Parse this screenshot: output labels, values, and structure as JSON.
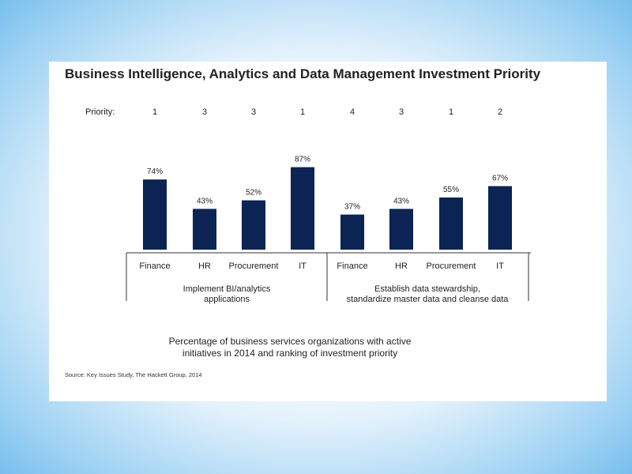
{
  "chart_data": {
    "type": "bar",
    "title": "Business Intelligence, Analytics and Data Management Investment Priority",
    "priority_label": "Priority:",
    "categories": [
      "Finance",
      "HR",
      "Procurement",
      "IT",
      "Finance",
      "HR",
      "Procurement",
      "IT"
    ],
    "values": [
      74,
      43,
      52,
      87,
      37,
      43,
      55,
      67
    ],
    "value_labels": [
      "74%",
      "43%",
      "52%",
      "87%",
      "37%",
      "43%",
      "55%",
      "67%"
    ],
    "priorities": [
      "1",
      "3",
      "3",
      "1",
      "4",
      "3",
      "1",
      "2"
    ],
    "groups": [
      {
        "label_lines": [
          "Implement BI/analytics",
          "applications"
        ]
      },
      {
        "label_lines": [
          "Establish data stewardship,",
          "standardize master data and cleanse data"
        ]
      }
    ],
    "ylim": [
      0,
      100
    ],
    "grid": false,
    "bar_color": "#0c2453"
  },
  "caption_lines": [
    "Percentage of business services organizations with active",
    "initiatives in 2014 and ranking of investment priority"
  ],
  "source": "Source: Key Issues Study, The Hackett Group, 2014"
}
